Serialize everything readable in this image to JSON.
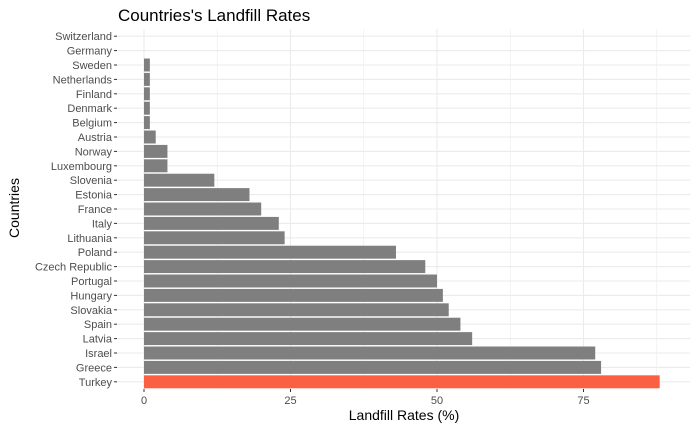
{
  "chart_data": {
    "type": "bar",
    "orientation": "horizontal",
    "title": "Countries's Landfill Rates",
    "xlabel": "Landfill Rates (%)",
    "ylabel": "Countries",
    "xlim": [
      0,
      90
    ],
    "xticks": [
      0,
      25,
      50,
      75
    ],
    "grid": true,
    "legend": "none",
    "categories": [
      "Switzerland",
      "Germany",
      "Sweden",
      "Netherlands",
      "Finland",
      "Denmark",
      "Belgium",
      "Austria",
      "Norway",
      "Luxembourg",
      "Slovenia",
      "Estonia",
      "France",
      "Italy",
      "Lithuania",
      "Poland",
      "Czech Republic",
      "Portugal",
      "Hungary",
      "Slovakia",
      "Spain",
      "Latvia",
      "Israel",
      "Greece",
      "Turkey"
    ],
    "values": [
      0,
      0,
      1,
      1,
      1,
      1,
      1,
      2,
      4,
      4,
      12,
      18,
      20,
      23,
      24,
      43,
      48,
      50,
      51,
      52,
      54,
      56,
      77,
      78,
      88
    ],
    "highlight": "Turkey",
    "colors": {
      "bar": "#7f7f7f",
      "highlight": "#fc6042",
      "grid": "#ebebeb",
      "text": "#4d4d4d",
      "title": "#000000"
    }
  }
}
